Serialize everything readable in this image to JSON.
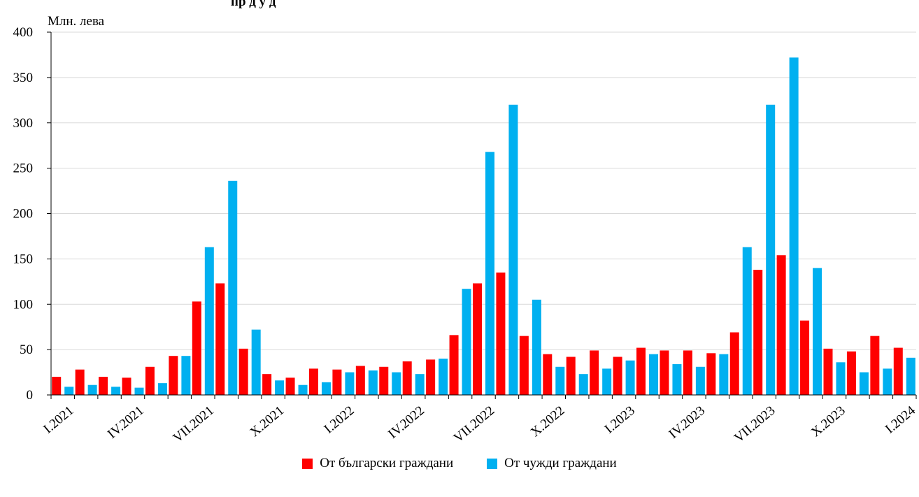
{
  "chart_data": {
    "type": "bar",
    "title": "пр д      у                                      д",
    "unit_label": "Млн. лева",
    "ylim": [
      0,
      400
    ],
    "yticks": [
      0,
      50,
      100,
      150,
      200,
      250,
      300,
      350,
      400
    ],
    "categories": [
      "I.2021",
      "II.2021",
      "III.2021",
      "IV.2021",
      "V.2021",
      "VI.2021",
      "VII.2021",
      "VIII.2021",
      "IX.2021",
      "X.2021",
      "XI.2021",
      "XII.2021",
      "I.2022",
      "II.2022",
      "III.2022",
      "IV.2022",
      "V.2022",
      "VI.2022",
      "VII.2022",
      "VIII.2022",
      "IX.2022",
      "X.2022",
      "XI.2022",
      "XII.2022",
      "I.2023",
      "II.2023",
      "III.2023",
      "IV.2023",
      "V.2023",
      "VI.2023",
      "VII.2023",
      "VIII.2023",
      "IX.2023",
      "X.2023",
      "XI.2023",
      "XII.2023",
      "I.2024"
    ],
    "xtick_labels": [
      {
        "index": 0,
        "label": "I.2021"
      },
      {
        "index": 3,
        "label": "IV.2021"
      },
      {
        "index": 6,
        "label": "VII.2021"
      },
      {
        "index": 9,
        "label": "X.2021"
      },
      {
        "index": 12,
        "label": "I.2022"
      },
      {
        "index": 15,
        "label": "IV.2022"
      },
      {
        "index": 18,
        "label": "VII.2022"
      },
      {
        "index": 21,
        "label": "X.2022"
      },
      {
        "index": 24,
        "label": "I.2023"
      },
      {
        "index": 27,
        "label": "IV.2023"
      },
      {
        "index": 30,
        "label": "VII.2023"
      },
      {
        "index": 33,
        "label": "X.2023"
      },
      {
        "index": 36,
        "label": "I.2024"
      }
    ],
    "series": [
      {
        "name": "От български граждани",
        "color": "#ff0000",
        "values": [
          20,
          28,
          20,
          19,
          31,
          43,
          103,
          123,
          51,
          23,
          19,
          29,
          28,
          32,
          31,
          37,
          39,
          66,
          123,
          135,
          65,
          45,
          42,
          49,
          42,
          52,
          49,
          49,
          46,
          69,
          138,
          154,
          82,
          51,
          48,
          65,
          52
        ]
      },
      {
        "name": "От чужди граждани",
        "color": "#00b0f0",
        "values": [
          9,
          11,
          9,
          8,
          13,
          43,
          163,
          236,
          72,
          16,
          11,
          14,
          25,
          27,
          25,
          23,
          40,
          117,
          268,
          320,
          105,
          31,
          23,
          29,
          38,
          45,
          34,
          31,
          45,
          163,
          320,
          372,
          140,
          36,
          25,
          29,
          41
        ]
      }
    ],
    "grid": true,
    "legend_position": "bottom-center"
  }
}
